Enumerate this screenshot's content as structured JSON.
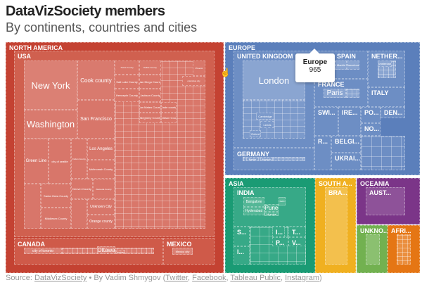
{
  "title": "DataVizSociety members",
  "subtitle": "By continents, countries and cities",
  "tooltip": {
    "name": "Europe",
    "value": "965"
  },
  "footer": {
    "source_label": "Source:",
    "source_link": "DataVizSociety",
    "by": "• By Vadim Shmygov (",
    "links": [
      "Twitter",
      "Facebook",
      "Tableau Public",
      "Instagram"
    ],
    "close": ")"
  },
  "colors": {
    "north_america": "#c44232",
    "europe": "#5b7fbb",
    "asia": "#1a9b74",
    "south_america": "#f0b020",
    "oceania": "#7b3588",
    "unknown": "#72b150",
    "africa": "#e57614"
  },
  "chart_data": {
    "type": "treemap",
    "title": "DataVizSociety members",
    "subtitle": "By continents, countries and cities",
    "continents": [
      {
        "name": "NORTH AMERICA",
        "countries": [
          {
            "name": "USA",
            "cities": [
              "New York",
              "Cook county",
              "Washington",
              "San Francisco",
              "Green Line",
              "city of seattle",
              "Fulton County",
              "Los Angeles",
              "Multnomah County",
              "Santa Clara County",
              "Middlesex County",
              "Denver County",
              "Alameda County",
              "Unknown City",
              "Orange county",
              "Travis County",
              "Dallas County",
              "Salt Lake County",
              "San Diego County",
              "Hennepin County",
              "Jackson County",
              "San Mateo County",
              "Dade county",
              "Allegheny County",
              "Davidson County",
              "Phoenix",
              "columbus city"
            ]
          },
          {
            "name": "CANADA",
            "cities": [
              "city of toronto",
              "Ottawa",
              "Quebec"
            ]
          },
          {
            "name": "MEXICO",
            "cities": [
              "Mexico city"
            ]
          }
        ]
      },
      {
        "name": "EUROPE",
        "value": 965,
        "countries": [
          {
            "name": "UNITED KINGDOM",
            "cities": [
              "London",
              "Cambridge",
              "Leeds",
              "Oxford"
            ]
          },
          {
            "name": "GERMANY",
            "cities": [
              "Berlin",
              "Munich"
            ]
          },
          {
            "name": "SPAIN",
            "cities": [
              "Madrid",
              "Barcelona"
            ]
          },
          {
            "name": "FRANCE",
            "cities": [
              "Paris"
            ]
          },
          {
            "name": "NETHER...",
            "cities": [
              "Amsterdam"
            ]
          },
          {
            "name": "ITALY"
          },
          {
            "name": "SWI..."
          },
          {
            "name": "IRE..."
          },
          {
            "name": "PO..."
          },
          {
            "name": "NO..."
          },
          {
            "name": "DEN..."
          },
          {
            "name": "R..."
          },
          {
            "name": "BELGI..."
          },
          {
            "name": "UKRAI..."
          }
        ]
      },
      {
        "name": "ASIA",
        "countries": [
          {
            "name": "INDIA",
            "cities": [
              "Bangalore",
              "Pune",
              "Hyderabad",
              "Mumbai",
              "Delhi"
            ]
          },
          {
            "name": "S..."
          },
          {
            "name": "I..."
          },
          {
            "name": "T..."
          },
          {
            "name": "P..."
          },
          {
            "name": "V..."
          },
          {
            "name": "I..."
          }
        ]
      },
      {
        "name": "SOUTH A...",
        "countries": [
          {
            "name": "BRA..."
          }
        ]
      },
      {
        "name": "OCEANIA",
        "countries": [
          {
            "name": "AUST..."
          }
        ]
      },
      {
        "name": "UNKNO..."
      },
      {
        "name": "AFRI..."
      }
    ]
  }
}
